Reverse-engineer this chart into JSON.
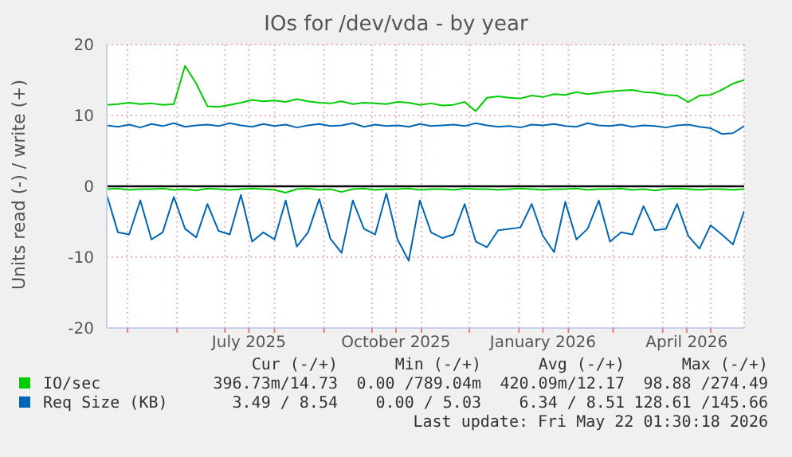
{
  "chart_data": {
    "type": "line",
    "title": "IOs for /dev/vda - by year",
    "ylabel": "Units read (-) / write (+)",
    "x": [
      "2025-04-18",
      "2025-04-25",
      "2025-05-02",
      "2025-05-09",
      "2025-05-16",
      "2025-05-23",
      "2025-05-30",
      "2025-06-06",
      "2025-06-13",
      "2025-06-20",
      "2025-06-27",
      "2025-07-04",
      "2025-07-11",
      "2025-07-18",
      "2025-07-25",
      "2025-08-01",
      "2025-08-08",
      "2025-08-15",
      "2025-08-22",
      "2025-08-29",
      "2025-09-05",
      "2025-09-12",
      "2025-09-19",
      "2025-09-26",
      "2025-10-03",
      "2025-10-10",
      "2025-10-17",
      "2025-10-24",
      "2025-10-31",
      "2025-11-07",
      "2025-11-14",
      "2025-11-21",
      "2025-11-28",
      "2025-12-05",
      "2025-12-12",
      "2025-12-19",
      "2025-12-26",
      "2026-01-02",
      "2026-01-09",
      "2026-01-16",
      "2026-01-23",
      "2026-01-30",
      "2026-02-06",
      "2026-02-13",
      "2026-02-20",
      "2026-02-27",
      "2026-03-06",
      "2026-03-13",
      "2026-03-20",
      "2026-03-27",
      "2026-04-03",
      "2026-04-10",
      "2026-04-17",
      "2026-04-24",
      "2026-05-01",
      "2026-05-08",
      "2026-05-15",
      "2026-05-22"
    ],
    "series": [
      {
        "name": "IO/sec",
        "color": "#00cc00",
        "values": [
          11.5,
          11.6,
          11.8,
          11.6,
          11.7,
          11.5,
          11.6,
          17,
          14.5,
          11.3,
          11.2,
          11.5,
          11.8,
          12.2,
          12.0,
          12.1,
          11.9,
          12.3,
          12.0,
          11.8,
          11.7,
          12.0,
          11.6,
          11.8,
          11.7,
          11.6,
          11.9,
          11.8,
          11.5,
          11.7,
          11.4,
          11.5,
          11.9,
          10.6,
          12.5,
          12.7,
          12.5,
          12.4,
          12.8,
          12.6,
          13.0,
          12.9,
          13.3,
          13.0,
          13.2,
          13.4,
          13.5,
          13.6,
          13.3,
          13.2,
          12.9,
          12.8,
          11.9,
          12.8,
          12.9,
          13.6,
          14.5,
          15.0
        ]
      },
      {
        "color": "#00cc00",
        "values": [
          -0.4,
          -0.3,
          -0.5,
          -0.4,
          -0.4,
          -0.3,
          -0.5,
          -0.4,
          -0.6,
          -0.3,
          -0.4,
          -0.5,
          -0.4,
          -0.3,
          -0.4,
          -0.5,
          -0.9,
          -0.4,
          -0.3,
          -0.5,
          -0.4,
          -0.8,
          -0.4,
          -0.3,
          -0.5,
          -0.4,
          -0.4,
          -0.3,
          -0.5,
          -0.4,
          -0.4,
          -0.5,
          -0.3,
          -0.4,
          -0.4,
          -0.5,
          -0.4,
          -0.3,
          -0.4,
          -0.5,
          -0.4,
          -0.4,
          -0.3,
          -0.5,
          -0.4,
          -0.4,
          -0.3,
          -0.5,
          -0.4,
          -0.6,
          -0.4,
          -0.3,
          -0.4,
          -0.5,
          -0.4,
          -0.4,
          -0.5,
          -0.4
        ]
      },
      {
        "name": "Req Size (KB)",
        "color": "#0066b3",
        "values": [
          8.6,
          8.4,
          8.7,
          8.3,
          8.8,
          8.5,
          8.9,
          8.4,
          8.6,
          8.7,
          8.5,
          8.9,
          8.6,
          8.4,
          8.8,
          8.5,
          8.7,
          8.3,
          8.6,
          8.8,
          8.5,
          8.6,
          8.9,
          8.4,
          8.7,
          8.5,
          8.6,
          8.4,
          8.8,
          8.5,
          8.6,
          8.7,
          8.5,
          8.9,
          8.6,
          8.4,
          8.5,
          8.3,
          8.7,
          8.6,
          8.8,
          8.5,
          8.4,
          8.9,
          8.6,
          8.5,
          8.7,
          8.4,
          8.6,
          8.5,
          8.3,
          8.6,
          8.7,
          8.4,
          8.2,
          7.4,
          7.5,
          8.5
        ]
      },
      {
        "color": "#0066b3",
        "values": [
          -1.2,
          -6.5,
          -6.8,
          -2.0,
          -7.5,
          -6.5,
          -1.5,
          -6.0,
          -7.2,
          -2.5,
          -6.3,
          -6.8,
          -1.2,
          -7.8,
          -6.5,
          -7.5,
          -2.0,
          -8.5,
          -6.5,
          -1.8,
          -7.4,
          -9.4,
          -2.0,
          -6.0,
          -6.8,
          -1.0,
          -7.5,
          -10.5,
          -2.0,
          -6.5,
          -7.3,
          -6.8,
          -2.5,
          -7.8,
          -8.6,
          -6.2,
          -6.0,
          -5.8,
          -2.5,
          -7.0,
          -9.3,
          -2.2,
          -7.5,
          -6.0,
          -2.0,
          -7.8,
          -6.5,
          -6.8,
          -2.8,
          -6.2,
          -6.0,
          -2.5,
          -7.0,
          -8.8,
          -5.5,
          -6.8,
          -8.2,
          -3.5
        ]
      }
    ],
    "xlim": [
      "2025-04-18",
      "2026-05-22"
    ],
    "xticks": [
      {
        "value": "2025-05-01",
        "label": null
      },
      {
        "value": "2025-06-01",
        "label": null
      },
      {
        "value": "2025-07-01",
        "label": null
      },
      {
        "value": "2025-07-16",
        "label": "July 2025"
      },
      {
        "value": "2025-08-01",
        "label": null
      },
      {
        "value": "2025-09-01",
        "label": null
      },
      {
        "value": "2025-10-01",
        "label": null
      },
      {
        "value": "2025-10-16",
        "label": "October 2025"
      },
      {
        "value": "2025-11-01",
        "label": null
      },
      {
        "value": "2025-12-01",
        "label": null
      },
      {
        "value": "2026-01-01",
        "label": null
      },
      {
        "value": "2026-01-16",
        "label": "January 2026"
      },
      {
        "value": "2026-02-01",
        "label": null
      },
      {
        "value": "2026-03-01",
        "label": null
      },
      {
        "value": "2026-04-01",
        "label": null
      },
      {
        "value": "2026-04-16",
        "label": "April 2026"
      },
      {
        "value": "2026-05-01",
        "label": null
      }
    ],
    "ylim": [
      -20,
      20
    ],
    "yticks": [
      -20,
      -10,
      0,
      10,
      20
    ],
    "ref_lines": [
      {
        "axis": "y",
        "value": 0,
        "color": "#000000"
      }
    ],
    "grid": true,
    "legend": "bottom",
    "annotations": [
      "Cur (-/+)",
      "Min (-/+)",
      "Avg (-/+)",
      "Max (-/+)",
      "396.73m/14.73",
      "0.00 /789.04m",
      "420.09m/12.17",
      "98.88 /274.49",
      "3.49 / 8.54",
      "0.00 / 5.03",
      "6.34 / 8.51",
      "128.61 /145.66",
      "Last update: Fri May 22 01:30:18 2026"
    ]
  }
}
